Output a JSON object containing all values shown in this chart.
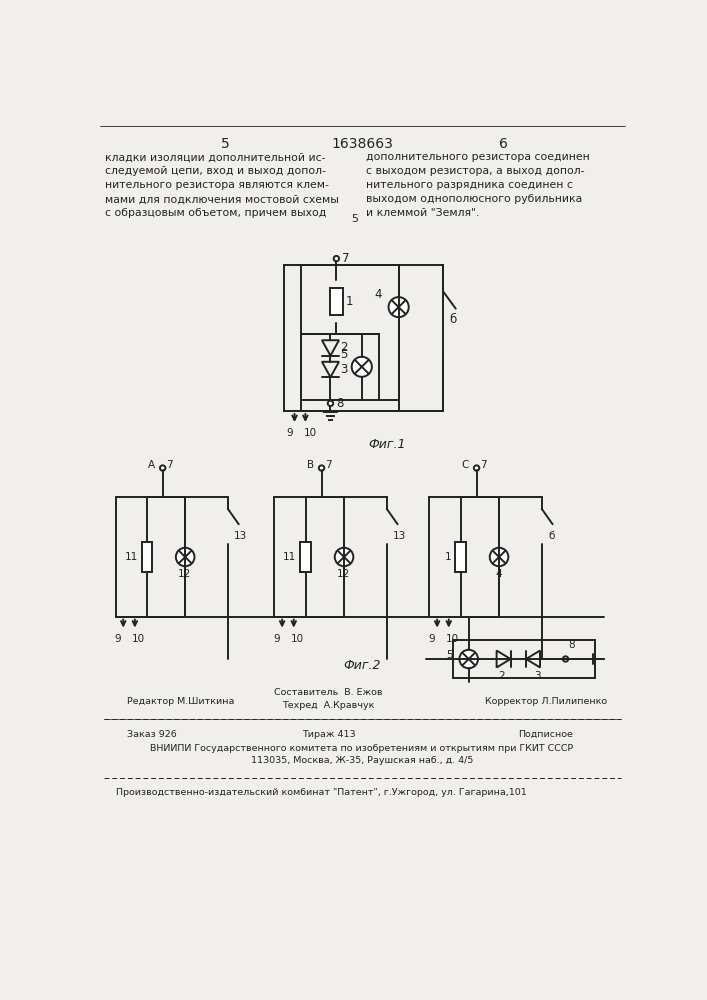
{
  "page_color": "#f0efeb",
  "header": {
    "left_num": "5",
    "center_num": "1638663",
    "right_num": "6"
  },
  "text_left": "кладки изоляции дополнительной ис-\nследуемой цепи, вход и выход допол-\nнительного резистора являются клем-\nмами для подключения мостовой схемы\nс образцовым объетом, причем выход",
  "text_right": "дополнительного резистора соединен\nс выходом резистора, а выход допол-\nнительного разрядника соединен с\nвыходом однополюсного рубильника\nи клеммой \"Земля\".",
  "fig1_caption": "Фиг.1",
  "fig2_caption": "Фиг.2",
  "footer_line1_col1": "Редактор М.Шиткина",
  "footer_line1_col2": "Составитель  В. Ежов\nТехред  А.Кравчук",
  "footer_line1_col3": "Корректор Л.Пилипенко",
  "footer_line2_col1": "Заказ 926",
  "footer_line2_col2": "Тираж 413",
  "footer_line2_col3": "Подписное",
  "footer_line3": "ВНИИПИ Государственного комитета по изобретениям и открытиям при ГКИТ СССР\n113035, Москва, Ж-35, Раушская наб., д. 4/5",
  "footer_line4": "Производственно-издательский комбинат \"Патент\", г.Ужгород, ул. Гагарина,101"
}
